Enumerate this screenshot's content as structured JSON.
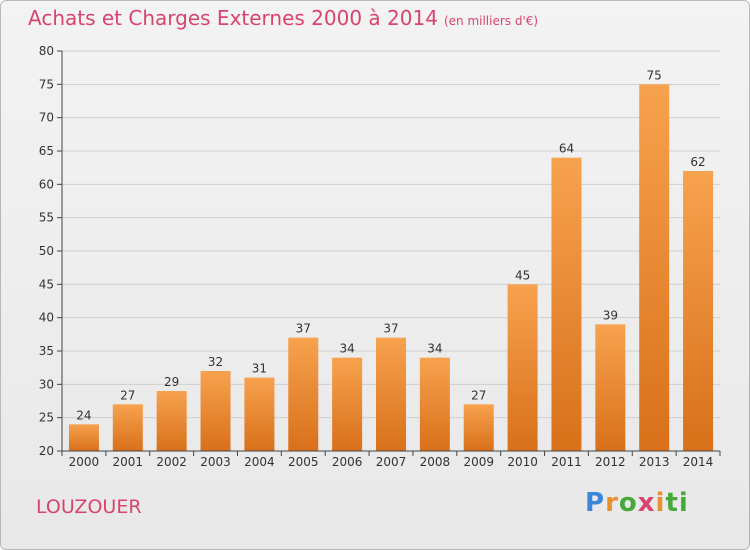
{
  "header": {
    "title": "Achats et Charges Externes 2000 à 2014",
    "unit": "(en milliers d'€)"
  },
  "footer": {
    "place": "LOUZOUER",
    "logo_letters": [
      "P",
      "r",
      "o",
      "x",
      "i",
      "ti"
    ]
  },
  "colors": {
    "bar_top": "#f7a24e",
    "bar_bottom": "#d9701a",
    "title": "#d9446e",
    "grid": "#cfcfcf"
  },
  "chart_data": {
    "type": "bar",
    "title": "Achats et Charges Externes 2000 à 2014",
    "categories": [
      "2000",
      "2001",
      "2002",
      "2003",
      "2004",
      "2005",
      "2006",
      "2007",
      "2008",
      "2009",
      "2010",
      "2011",
      "2012",
      "2013",
      "2014"
    ],
    "values": [
      24,
      27,
      29,
      32,
      31,
      37,
      34,
      37,
      34,
      27,
      45,
      64,
      39,
      75,
      62
    ],
    "ylim": [
      20,
      80
    ],
    "yticks": [
      20,
      25,
      30,
      35,
      40,
      45,
      50,
      55,
      60,
      65,
      70,
      75,
      80
    ],
    "grid": true
  }
}
